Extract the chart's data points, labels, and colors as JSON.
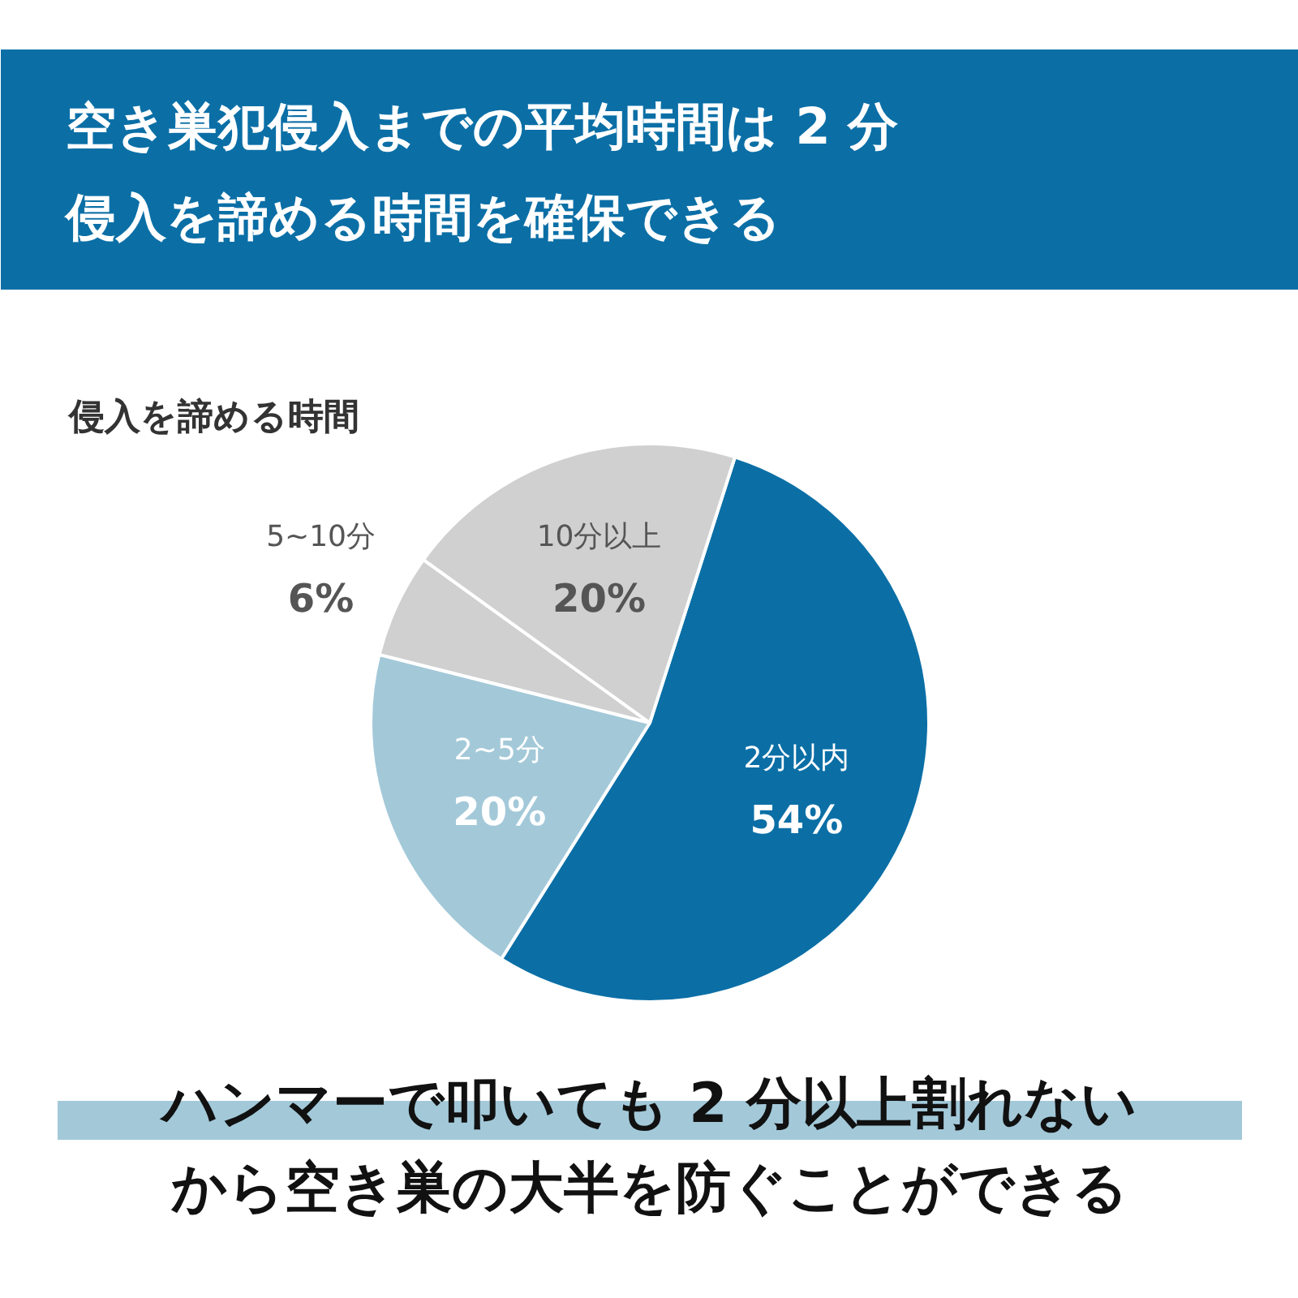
{
  "chart_data": {
    "type": "pie",
    "title": "空き巣犯侵入までの平均時間は 2 分侵入を諦める時間を確保できる",
    "subtitle": "侵入を諦める時間",
    "categories": [
      "2分以内",
      "2~5分",
      "5~10分",
      "10分以上"
    ],
    "values": [
      54,
      20,
      6,
      20
    ],
    "value_labels": [
      "54%",
      "20%",
      "6%",
      "20%"
    ],
    "colors": [
      "#0b6fa6",
      "#a3c9d9",
      "#d0d0d0",
      "#d0d0d0"
    ],
    "annotations": [
      "ハンマーで叩いても 2 分以上割れない",
      "から空き巣の大半を防ぐことができる"
    ]
  }
}
